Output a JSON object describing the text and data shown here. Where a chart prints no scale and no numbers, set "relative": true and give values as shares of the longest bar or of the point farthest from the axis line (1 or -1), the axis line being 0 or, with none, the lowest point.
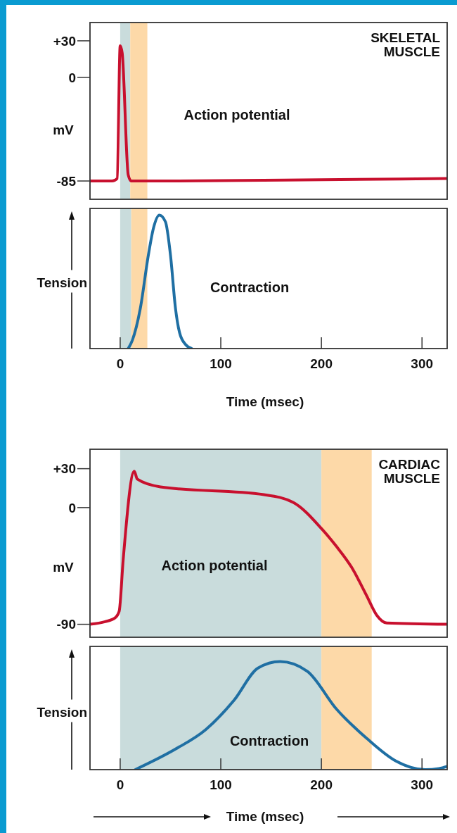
{
  "chart_data": [
    {
      "type": "line",
      "title": "SKELETAL MUSCLE",
      "ylabel": "mV",
      "annotations": [
        "Action potential"
      ],
      "xlim": [
        -30,
        325
      ],
      "ylim": [
        -100,
        45
      ],
      "yticks": [
        {
          "value": 30,
          "label": "+30"
        },
        0,
        -85
      ],
      "tick_labels": "y",
      "grid": false,
      "bands": [
        {
          "axis": "x",
          "from": 0,
          "to": 10,
          "color": "#c9dcdc"
        },
        {
          "axis": "x",
          "from": 10,
          "to": 27,
          "color": "#fdd9a8"
        }
      ],
      "series": [
        {
          "color": "#c8102e",
          "x": [
            -30,
            -8,
            -3,
            0,
            2,
            8,
            11,
            50,
            200,
            325
          ],
          "values": [
            -85,
            -85,
            -83,
            26,
            20,
            -80,
            -85,
            -85,
            -84,
            -83
          ]
        }
      ]
    },
    {
      "type": "line",
      "ylabel": "Tension",
      "xlabel": "Time (msec)",
      "annotations": [
        "Contraction"
      ],
      "relative": true,
      "xlim": [
        -30,
        325
      ],
      "xticks": [
        0,
        100,
        200,
        300
      ],
      "tick_labels": "x",
      "grid": false,
      "bands": [
        {
          "axis": "x",
          "from": 0,
          "to": 11,
          "color": "#c9dcdc"
        },
        {
          "axis": "x",
          "from": 11,
          "to": 27,
          "color": "#fdd9a8"
        }
      ],
      "series": [
        {
          "color": "#1f6fa3",
          "x": [
            8,
            12,
            20,
            28,
            33,
            39,
            45,
            50,
            55,
            59,
            65,
            71
          ],
          "values": [
            0,
            0.06,
            0.3,
            0.7,
            0.9,
            1,
            0.95,
            0.7,
            0.3,
            0.12,
            0.03,
            0
          ]
        }
      ]
    },
    {
      "type": "line",
      "title": "CARDIAC MUSCLE",
      "ylabel": "mV",
      "annotations": [
        "Action potential"
      ],
      "xlim": [
        -30,
        325
      ],
      "ylim": [
        -100,
        45
      ],
      "yticks": [
        {
          "value": 30,
          "label": "+30"
        },
        0,
        -90
      ],
      "tick_labels": "y",
      "grid": false,
      "bands": [
        {
          "axis": "x",
          "from": 0,
          "to": 200,
          "color": "#c9dcdc"
        },
        {
          "axis": "x",
          "from": 200,
          "to": 250,
          "color": "#fdd9a8"
        }
      ],
      "series": [
        {
          "color": "#c8102e",
          "x": [
            -30,
            -15,
            -5,
            -1,
            3,
            14,
            17,
            40,
            143,
            172,
            201,
            215,
            230,
            245,
            255,
            265,
            325
          ],
          "values": [
            -90,
            -88,
            -85,
            -80,
            -40,
            28,
            22,
            16,
            10,
            4,
            -17,
            -30,
            -46,
            -68,
            -83,
            -89,
            -90
          ]
        }
      ]
    },
    {
      "type": "line",
      "ylabel": "Tension",
      "xlabel": "Time (msec)",
      "annotations": [
        "Contraction"
      ],
      "relative": true,
      "xlim": [
        -30,
        325
      ],
      "xticks": [
        0,
        100,
        200,
        300
      ],
      "tick_labels": "x",
      "grid": false,
      "bands": [
        {
          "axis": "x",
          "from": 0,
          "to": 200,
          "color": "#c9dcdc"
        },
        {
          "axis": "x",
          "from": 200,
          "to": 250,
          "color": "#fdd9a8"
        }
      ],
      "series": [
        {
          "color": "#1f6fa3",
          "x": [
            15,
            55,
            85,
            113,
            137,
            159,
            186,
            215,
            245,
            274,
            303,
            317,
            325
          ],
          "values": [
            0,
            0.19,
            0.37,
            0.64,
            0.94,
            1,
            0.91,
            0.56,
            0.29,
            0.08,
            0,
            0.01,
            0.03
          ]
        }
      ]
    }
  ]
}
